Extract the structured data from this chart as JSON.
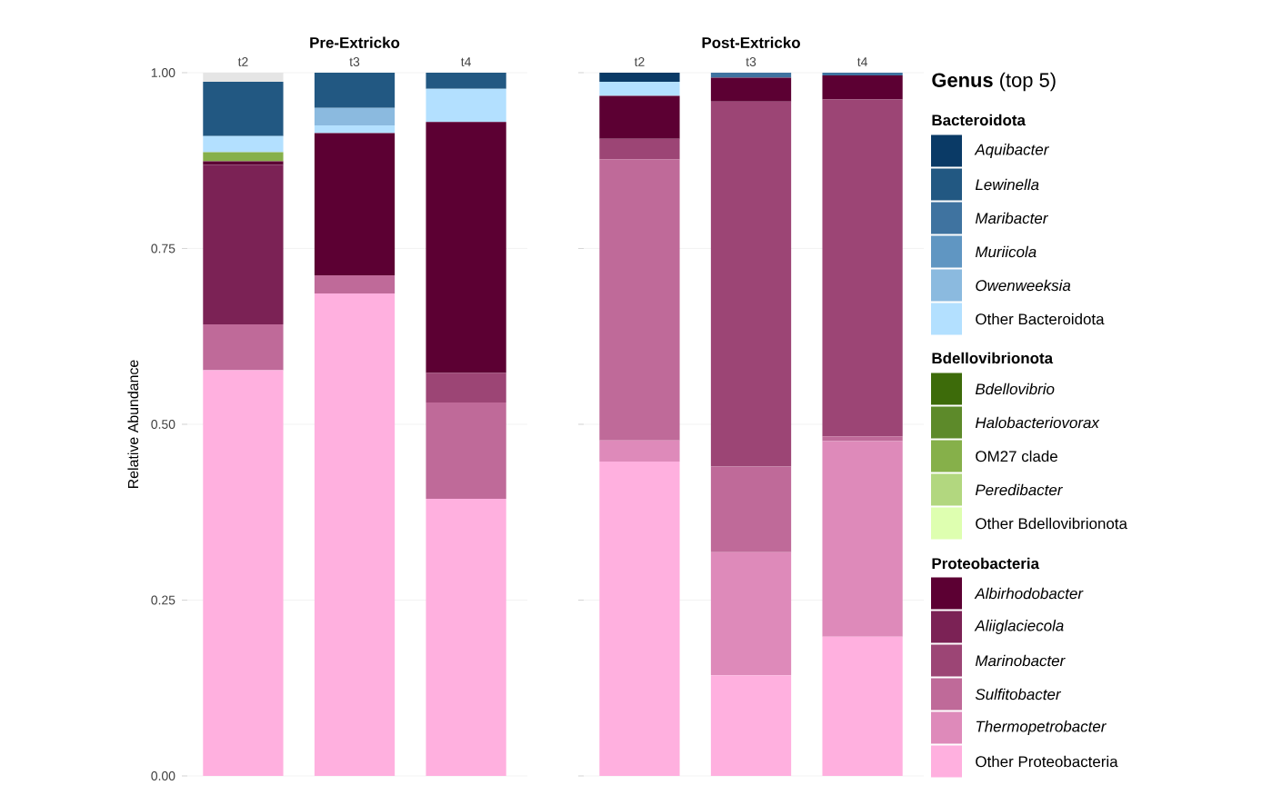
{
  "chart_data": [
    {
      "type": "bar",
      "stacked": true,
      "title": "Pre-Extricko",
      "ylabel": "Relative Abundance",
      "categories": [
        "t2",
        "t3",
        "t4"
      ],
      "ylim": [
        0,
        1
      ],
      "yticks": [
        {
          "value": 0,
          "label": "0.00"
        },
        {
          "value": 0.25,
          "label": "0.25"
        },
        {
          "value": 0.5,
          "label": "0.50"
        },
        {
          "value": 0.75,
          "label": "0.75"
        },
        {
          "value": 1,
          "label": "1.00"
        }
      ],
      "grid": "y",
      "series": [
        {
          "color": "#ffb0df",
          "values": [
            0.577,
            0.686,
            0.394
          ]
        },
        {
          "color": "#de8aba",
          "values": [
            0,
            0,
            0
          ]
        },
        {
          "color": "#bf6a99",
          "values": [
            0.065,
            0.026,
            0.137
          ]
        },
        {
          "color": "#9c4575",
          "values": [
            0,
            0,
            0.042
          ]
        },
        {
          "color": "#7b2255",
          "values": [
            0.227,
            0,
            0
          ]
        },
        {
          "color": "#5c0033",
          "values": [
            0.005,
            0.202,
            0.357
          ]
        },
        {
          "color": "#deffb0",
          "values": [
            0,
            0,
            0
          ]
        },
        {
          "color": "#b2d77f",
          "values": [
            0,
            0,
            0
          ]
        },
        {
          "color": "#86b04a",
          "values": [
            0.013,
            0,
            0
          ]
        },
        {
          "color": "#5d8a2a",
          "values": [
            0,
            0,
            0
          ]
        },
        {
          "color": "#3d6b0a",
          "values": [
            0,
            0,
            0
          ]
        },
        {
          "color": "#b3e0ff",
          "values": [
            0.023,
            0.011,
            0.047
          ]
        },
        {
          "color": "#8bbadf",
          "values": [
            0,
            0.025,
            0
          ]
        },
        {
          "color": "#6096c2",
          "values": [
            0,
            0,
            0
          ]
        },
        {
          "color": "#3f73a0",
          "values": [
            0,
            0,
            0
          ]
        },
        {
          "color": "#225882",
          "values": [
            0.077,
            0.05,
            0.023
          ]
        },
        {
          "color": "#0a3a66",
          "values": [
            0,
            0,
            0
          ]
        },
        {
          "color": "#e5e5e5",
          "values": [
            0.013,
            0,
            0
          ]
        }
      ]
    },
    {
      "type": "bar",
      "stacked": true,
      "title": "Post-Extricko",
      "categories": [
        "t2",
        "t3",
        "t4"
      ],
      "ylim": [
        0,
        1
      ],
      "yticks": [
        {
          "value": 0,
          "label": null
        },
        {
          "value": 0.25,
          "label": null
        },
        {
          "value": 0.5,
          "label": null
        },
        {
          "value": 0.75,
          "label": null
        },
        {
          "value": 1,
          "label": null
        }
      ],
      "tick_labels": "x",
      "grid": "y",
      "legend": "right",
      "legend_title": "**Genus** (top 5)",
      "annotations": [
        "Bacteroidota",
        "Bdellovibrionota",
        "Proteobacteria"
      ],
      "series": [
        {
          "name": "Other Proteobacteria",
          "color": "#ffb0df",
          "values": [
            0.447,
            0.143,
            0.198
          ]
        },
        {
          "name": "*Thermopetrobacter*",
          "color": "#de8aba",
          "values": [
            0.03,
            0.175,
            0.278
          ]
        },
        {
          "name": "*Sulfitobacter*",
          "color": "#bf6a99",
          "values": [
            0.4,
            0.122,
            0.007
          ]
        },
        {
          "name": "*Marinobacter*",
          "color": "#9c4575",
          "values": [
            0.029,
            0.519,
            0.479
          ]
        },
        {
          "name": "*Aliiglaciecola*",
          "color": "#7b2255",
          "values": [
            0,
            0,
            0
          ]
        },
        {
          "name": "*Albirhodobacter*",
          "color": "#5c0033",
          "values": [
            0.061,
            0.034,
            0.034
          ]
        },
        {
          "name": "Other Bdellovibrionota",
          "color": "#deffb0",
          "values": [
            0,
            0,
            0
          ]
        },
        {
          "name": "*Peredibacter*",
          "color": "#b2d77f",
          "values": [
            0,
            0,
            0
          ]
        },
        {
          "name": "OM27 clade",
          "color": "#86b04a",
          "values": [
            0,
            0,
            0
          ]
        },
        {
          "name": "*Halobacteriovorax*",
          "color": "#5d8a2a",
          "values": [
            0,
            0,
            0
          ]
        },
        {
          "name": "*Bdellovibrio*",
          "color": "#3d6b0a",
          "values": [
            0,
            0,
            0
          ]
        },
        {
          "name": "Other Bacteroidota",
          "color": "#b3e0ff",
          "values": [
            0.02,
            0,
            0
          ]
        },
        {
          "name": "*Owenweeksia*",
          "color": "#8bbadf",
          "values": [
            0,
            0,
            0
          ]
        },
        {
          "name": "*Muriicola*",
          "color": "#6096c2",
          "values": [
            0,
            0,
            0
          ]
        },
        {
          "name": "*Maribacter*",
          "color": "#3f73a0",
          "values": [
            0,
            0.007,
            0.004
          ]
        },
        {
          "name": "*Lewinella*",
          "color": "#225882",
          "values": [
            0,
            0,
            0
          ]
        },
        {
          "name": "*Aquibacter*",
          "color": "#0a3a66",
          "values": [
            0.013,
            0,
            0
          ]
        }
      ]
    }
  ]
}
